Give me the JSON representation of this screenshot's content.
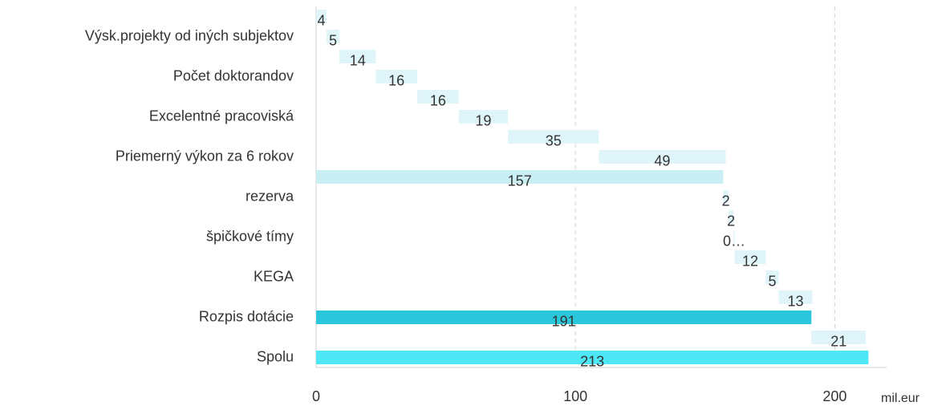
{
  "chart_data": {
    "type": "waterfall",
    "orientation": "horizontal",
    "categories": [
      null,
      "Výsk.projekty od iných subjektov",
      null,
      "Počet doktorandov",
      null,
      "Excelentné pracoviská",
      null,
      "Priemerný výkon za 6 rokov",
      null,
      "rezerva",
      null,
      "špičkové tímy",
      null,
      "KEGA",
      null,
      "Rozpis dotácie",
      null,
      "Spolu"
    ],
    "values": [
      4,
      5,
      14,
      16,
      16,
      19,
      35,
      49,
      157,
      2,
      2,
      0.4,
      12,
      5,
      13,
      191,
      21,
      213
    ],
    "value_labels": [
      "4",
      "5",
      "14",
      "16",
      "16",
      "19",
      "35",
      "49",
      "157",
      "2",
      "2",
      "0…",
      "12",
      "5",
      "13",
      "191",
      "21",
      "213"
    ],
    "totals": [
      8,
      15,
      17
    ],
    "increment_color": "#e0f5f9",
    "total_colors": [
      "#c9eff5",
      "#2ac6dc",
      "#4de7f6"
    ],
    "xlim": [
      0,
      220
    ],
    "xticks": [
      0,
      100,
      200
    ],
    "xlabel": "mil.eur",
    "grid": true
  }
}
